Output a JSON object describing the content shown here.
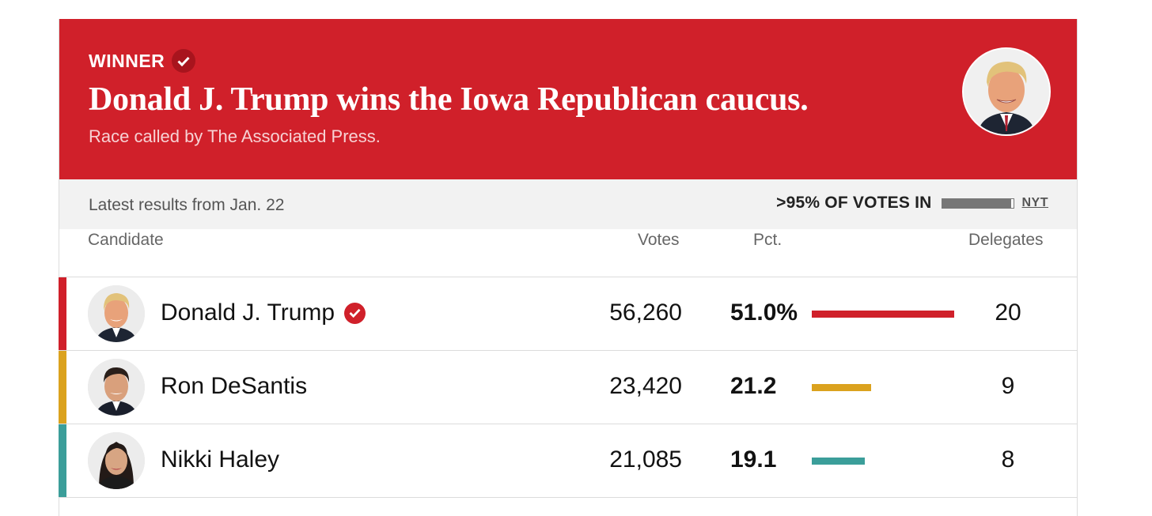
{
  "banner": {
    "winner_label": "WINNER",
    "headline": "Donald J. Trump wins the Iowa Republican caucus.",
    "subline": "Race called by The Associated Press.",
    "color": "#d0202a"
  },
  "infobar": {
    "latest": "Latest results from Jan. 22",
    "votes_in": ">95% OF VOTES IN",
    "progress_fraction": 0.97,
    "source": "NYT"
  },
  "table": {
    "headers": {
      "candidate": "Candidate",
      "votes": "Votes",
      "pct": "Pct.",
      "delegates": "Delegates"
    },
    "rows": [
      {
        "name": "Donald J. Trump",
        "winner": true,
        "votes": "56,260",
        "pct": "51.0%",
        "pct_value": 51.0,
        "delegates": "20",
        "color": "#d0202a"
      },
      {
        "name": "Ron DeSantis",
        "winner": false,
        "votes": "23,420",
        "pct": "21.2",
        "pct_value": 21.2,
        "delegates": "9",
        "color": "#dba21e"
      },
      {
        "name": "Nikki Haley",
        "winner": false,
        "votes": "21,085",
        "pct": "19.1",
        "pct_value": 19.1,
        "delegates": "8",
        "color": "#3b9e9a"
      }
    ]
  }
}
